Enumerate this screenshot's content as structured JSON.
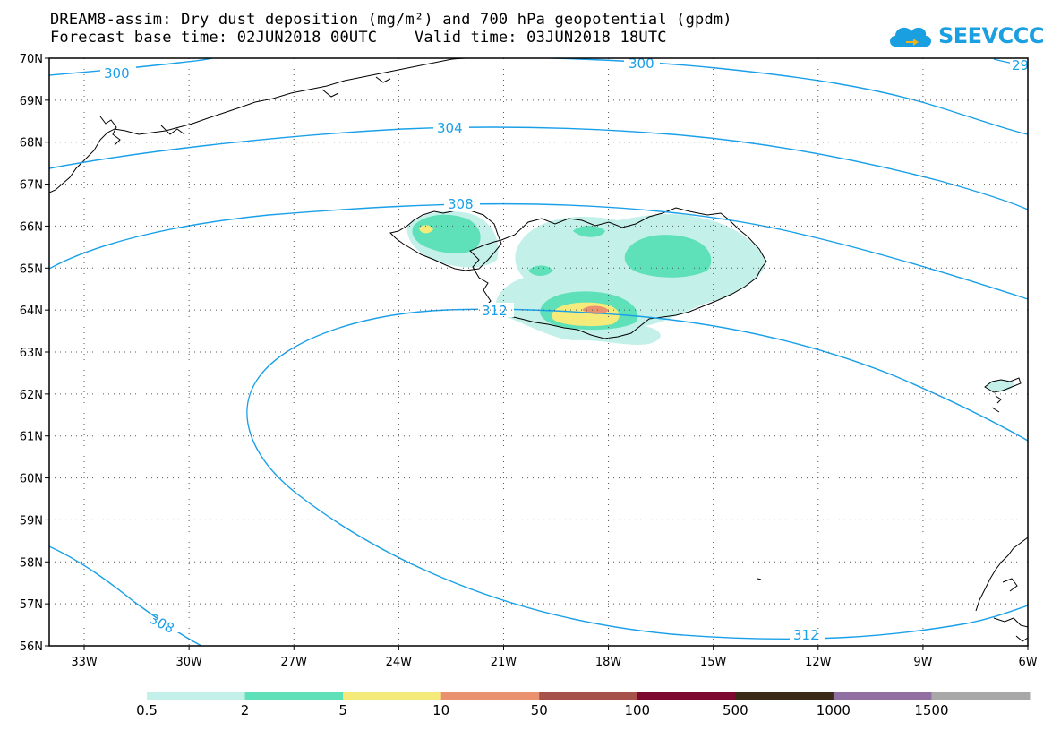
{
  "header": {
    "title_line1": "DREAM8-assim: Dry dust deposition (mg/m²) and 700 hPa geopotential (gpdm)",
    "title_line2": "Forecast base time: 02JUN2018 00UTC    Valid time: 03JUN2018 18UTC",
    "logo_text": "SEEVCCC",
    "logo_icon": "cloud-icon"
  },
  "map": {
    "lat_labels": [
      "70N",
      "69N",
      "68N",
      "67N",
      "66N",
      "65N",
      "64N",
      "63N",
      "62N",
      "61N",
      "60N",
      "59N",
      "58N",
      "57N",
      "56N"
    ],
    "lon_labels": [
      "33W",
      "30W",
      "27W",
      "24W",
      "21W",
      "18W",
      "15W",
      "12W",
      "9W",
      "6W"
    ],
    "lat_range": [
      56,
      70
    ],
    "lon_range": [
      -34,
      -6
    ],
    "contour_color": "#1aa0e8",
    "coast_color": "#000000",
    "contour_labels": [
      {
        "value": "300",
        "lon": -32.5,
        "lat": 69.65
      },
      {
        "value": "300",
        "lon": -16.3,
        "lat": 69.95
      },
      {
        "value": "29",
        "lon": -6.3,
        "lat": 69.85
      },
      {
        "value": "304",
        "lon": -22.5,
        "lat": 68.3
      },
      {
        "value": "308",
        "lon": -22.0,
        "lat": 66.5
      },
      {
        "value": "312",
        "lon": -20.7,
        "lat": 63.9
      },
      {
        "value": "308",
        "lon": -30.9,
        "lat": 56.35
      },
      {
        "value": "312",
        "lon": -12.6,
        "lat": 56.2
      }
    ]
  },
  "colorbar": {
    "labels": [
      "0.5",
      "2",
      "5",
      "10",
      "50",
      "100",
      "500",
      "1000",
      "1500"
    ],
    "colors": [
      "#c3f0e8",
      "#5ee0b8",
      "#f5eb7a",
      "#ea9170",
      "#a6524a",
      "#7d0830",
      "#3a2a18",
      "#926fa2",
      "#a8a8a8"
    ]
  }
}
